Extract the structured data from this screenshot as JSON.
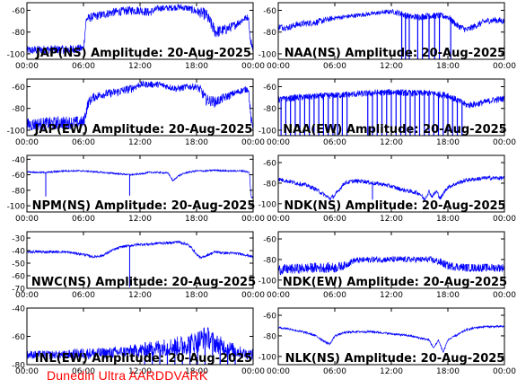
{
  "figure": {
    "footer_text": "Dunedin Ultra AARDDVARK",
    "footer_color": "#ff0000",
    "trace_color": "#0000ff"
  },
  "chart_data": [
    {
      "type": "line",
      "title": "JAP(NS) Amplitude: 20-Aug-2025",
      "x_ticks": [
        "00:00",
        "06:00",
        "12:00",
        "18:00",
        "00:00"
      ],
      "xlim": [
        0,
        24
      ],
      "ylim": [
        -105,
        -53
      ],
      "y_ticks": [
        -100,
        -80,
        -60
      ],
      "series": [
        {
          "x": [
            0,
            2,
            4,
            6,
            6.3,
            7,
            8,
            9,
            10,
            11,
            12,
            13,
            14,
            15,
            16,
            17,
            18,
            19,
            19.5,
            20,
            21,
            22,
            23,
            23.5,
            23.7,
            24
          ],
          "y": [
            -97,
            -96,
            -96,
            -95,
            -68,
            -66,
            -64,
            -62,
            -61,
            -60,
            -60,
            -62,
            -58,
            -58,
            -57,
            -58,
            -61,
            -64,
            -72,
            -80,
            -78,
            -74,
            -68,
            -66,
            -88,
            -94
          ],
          "noise": [
            4,
            4,
            4,
            4,
            4,
            4,
            4,
            4,
            4,
            4,
            4,
            4,
            3,
            3,
            3,
            3,
            4,
            6,
            6,
            6,
            5,
            4,
            3,
            3,
            4,
            4
          ]
        }
      ]
    },
    {
      "type": "line",
      "title": "NAA(NS) Amplitude: 20-Aug-2025",
      "x_ticks": [
        "00:00",
        "06:00",
        "12:00",
        "18:00",
        "00:00"
      ],
      "xlim": [
        0,
        24
      ],
      "ylim": [
        -105,
        -53
      ],
      "y_ticks": [
        -100,
        -80,
        -60
      ],
      "series": [
        {
          "x": [
            0,
            1,
            2,
            3,
            4,
            5,
            6,
            7,
            8,
            9,
            10,
            11,
            12,
            13,
            14,
            15,
            16,
            17,
            18,
            19,
            20,
            21,
            22,
            23,
            24
          ],
          "y": [
            -75,
            -76,
            -73,
            -72,
            -71,
            -69,
            -67,
            -66,
            -65,
            -64,
            -63,
            -62,
            -61,
            -63,
            -66,
            -66,
            -65,
            -65,
            -66,
            -74,
            -78,
            -74,
            -70,
            -69,
            -70
          ],
          "noise": [
            3,
            3,
            3,
            3,
            3,
            3,
            2,
            2,
            2,
            2,
            2,
            2,
            2,
            3,
            3,
            3,
            3,
            3,
            3,
            3,
            3,
            3,
            3,
            3,
            3
          ]
        }
      ],
      "dropouts": [
        13.1,
        13.5,
        13.9,
        14.8,
        15.3,
        16.0,
        16.6,
        17.1,
        18.3
      ]
    },
    {
      "type": "line",
      "title": "JAP(EW) Amplitude: 20-Aug-2025",
      "x_ticks": [
        "00:00",
        "06:00",
        "12:00",
        "18:00",
        "00:00"
      ],
      "xlim": [
        0,
        24
      ],
      "ylim": [
        -105,
        -53
      ],
      "y_ticks": [
        -100,
        -80,
        -60
      ],
      "series": [
        {
          "x": [
            0,
            2,
            4,
            6,
            6.5,
            7,
            8,
            9,
            10,
            11,
            12,
            13,
            14,
            15,
            16,
            17,
            18,
            18.5,
            19,
            20,
            21,
            22,
            23,
            23.5,
            23.8,
            24
          ],
          "y": [
            -95,
            -94,
            -93,
            -93,
            -75,
            -70,
            -67,
            -66,
            -64,
            -62,
            -58,
            -58,
            -58,
            -60,
            -62,
            -60,
            -60,
            -64,
            -72,
            -74,
            -70,
            -66,
            -63,
            -62,
            -92,
            -98
          ],
          "noise": [
            6,
            6,
            6,
            6,
            5,
            4,
            4,
            4,
            4,
            4,
            3,
            3,
            3,
            3,
            3,
            3,
            3,
            5,
            5,
            5,
            4,
            3,
            3,
            3,
            5,
            5
          ]
        }
      ]
    },
    {
      "type": "line",
      "title": "NAA(EW) Amplitude: 20-Aug-2025",
      "x_ticks": [
        "00:00",
        "06:00",
        "12:00",
        "18:00",
        "00:00"
      ],
      "xlim": [
        0,
        24
      ],
      "ylim": [
        -105,
        -53
      ],
      "y_ticks": [
        -100,
        -80,
        -60
      ],
      "series": [
        {
          "x": [
            0,
            2,
            4,
            6,
            8,
            10,
            12,
            14,
            16,
            18,
            20,
            21,
            22,
            23,
            24
          ],
          "y": [
            -72,
            -70,
            -69,
            -68,
            -67,
            -66,
            -65,
            -66,
            -66,
            -68,
            -77,
            -76,
            -74,
            -72,
            -71
          ],
          "noise": [
            3,
            3,
            3,
            3,
            3,
            3,
            3,
            3,
            3,
            3,
            3,
            3,
            3,
            3,
            3
          ]
        }
      ],
      "dropouts": [
        0.3,
        0.8,
        1.3,
        1.8,
        2.3,
        2.8,
        3.3,
        3.8,
        4.3,
        4.8,
        5.3,
        5.8,
        6.3,
        6.8,
        7.3,
        9.5,
        10.0,
        10.5,
        11.0,
        11.5,
        12.0,
        12.5,
        13.0,
        13.5,
        14.0,
        14.5,
        15.0,
        15.5,
        16.0,
        16.5,
        17.0,
        17.5,
        18.0,
        18.5,
        19.0,
        19.5
      ]
    },
    {
      "type": "line",
      "title": "NPM(NS) Amplitude: 20-Aug-2025",
      "x_ticks": [
        "00:00",
        "06:00",
        "12:00",
        "18:00",
        "00:00"
      ],
      "xlim": [
        0,
        24
      ],
      "ylim": [
        -108,
        -35
      ],
      "y_ticks": [
        -100,
        -80,
        -60,
        -40
      ],
      "series": [
        {
          "x": [
            0,
            1,
            2,
            3,
            4,
            5,
            6,
            7,
            8,
            9,
            10,
            11,
            12,
            13,
            14,
            15,
            15.5,
            16,
            16.5,
            17,
            18,
            19,
            20,
            21,
            22,
            23,
            23.6,
            23.8,
            24
          ],
          "y": [
            -56,
            -57,
            -57,
            -56,
            -55,
            -55,
            -55,
            -56,
            -57,
            -58,
            -59,
            -60,
            -59,
            -57,
            -57,
            -58,
            -68,
            -62,
            -59,
            -57,
            -55,
            -55,
            -54,
            -55,
            -55,
            -55,
            -57,
            -90,
            -88
          ],
          "noise": [
            1,
            1,
            1,
            1,
            1,
            1,
            1,
            1,
            1,
            1,
            1,
            1,
            1,
            1,
            1,
            1,
            1,
            1,
            1,
            1,
            1,
            1,
            1,
            1,
            1,
            1,
            1,
            2,
            2
          ]
        }
      ],
      "spikes": [
        {
          "x": 2.0,
          "y": -88
        },
        {
          "x": 10.9,
          "y": -87
        }
      ]
    },
    {
      "type": "line",
      "title": "NDK(NS) Amplitude: 20-Aug-2025",
      "x_ticks": [
        "00:00",
        "06:00",
        "12:00",
        "18:00",
        "00:00"
      ],
      "xlim": [
        0,
        24
      ],
      "ylim": [
        -108,
        -53
      ],
      "y_ticks": [
        -100,
        -80,
        -60
      ],
      "series": [
        {
          "x": [
            0,
            1,
            2,
            3,
            4,
            5,
            5.5,
            6,
            6.5,
            7,
            8,
            9,
            10,
            11,
            12,
            13,
            14,
            15,
            15.5,
            16,
            16.3,
            16.8,
            17.2,
            17.8,
            18,
            19,
            20,
            21,
            22,
            23,
            24
          ],
          "y": [
            -76,
            -78,
            -80,
            -82,
            -86,
            -92,
            -95,
            -92,
            -86,
            -80,
            -78,
            -78,
            -80,
            -81,
            -83,
            -86,
            -88,
            -90,
            -96,
            -88,
            -93,
            -88,
            -95,
            -86,
            -84,
            -80,
            -77,
            -76,
            -75,
            -75,
            -75
          ],
          "noise": [
            2,
            2,
            2,
            2,
            2,
            2,
            2,
            2,
            2,
            2,
            2,
            2,
            2,
            2,
            2,
            2,
            2,
            2,
            2,
            2,
            2,
            2,
            2,
            2,
            2,
            2,
            2,
            2,
            2,
            2,
            2
          ]
        }
      ],
      "spikes": [
        {
          "x": 10.0,
          "y": -96
        }
      ]
    },
    {
      "type": "line",
      "title": "NWC(NS) Amplitude: 20-Aug-2025",
      "x_ticks": [
        "00:00",
        "06:00",
        "12:00",
        "18:00",
        "00:00"
      ],
      "xlim": [
        0,
        24
      ],
      "ylim": [
        -70,
        -25
      ],
      "y_ticks": [
        -70,
        -60,
        -50,
        -40,
        -30
      ],
      "series": [
        {
          "x": [
            0,
            2,
            4,
            5,
            6,
            7,
            8,
            9,
            10,
            11,
            12,
            13,
            14,
            15,
            16,
            17,
            17.5,
            18,
            18.5,
            19,
            20,
            21,
            22,
            23,
            24
          ],
          "y": [
            -41,
            -41,
            -41,
            -42,
            -43,
            -45,
            -44,
            -40,
            -37,
            -36,
            -35,
            -35,
            -34,
            -34,
            -33,
            -35,
            -38,
            -43,
            -46,
            -44,
            -41,
            -42,
            -42,
            -43,
            -45
          ],
          "noise": [
            1,
            1,
            1,
            1,
            1,
            1,
            1,
            1,
            1,
            1,
            1,
            1,
            1,
            1,
            1,
            1,
            1,
            1,
            1,
            1,
            1,
            1,
            1,
            1,
            1
          ]
        }
      ],
      "spikes": [
        {
          "x": 10.9,
          "y": -69
        }
      ]
    },
    {
      "type": "line",
      "title": "NDK(EW) Amplitude: 20-Aug-2025",
      "x_ticks": [
        "00:00",
        "06:00",
        "12:00",
        "18:00",
        "00:00"
      ],
      "xlim": [
        0,
        24
      ],
      "ylim": [
        -108,
        -53
      ],
      "y_ticks": [
        -100,
        -80,
        -60
      ],
      "series": [
        {
          "x": [
            0,
            2,
            4,
            6,
            7,
            8,
            10,
            12,
            14,
            16,
            17,
            18,
            20,
            22,
            24
          ],
          "y": [
            -90,
            -89,
            -88,
            -88,
            -86,
            -81,
            -80,
            -80,
            -80,
            -80,
            -82,
            -86,
            -88,
            -88,
            -88
          ],
          "noise": [
            5,
            5,
            5,
            5,
            4,
            3,
            3,
            3,
            3,
            3,
            4,
            4,
            4,
            4,
            4
          ]
        }
      ]
    },
    {
      "type": "line",
      "title": "INL(EW) Amplitude: 20-Aug-2025",
      "x_ticks": [
        "00:00",
        "06:00",
        "12:00",
        "18:00",
        "00:00"
      ],
      "xlim": [
        0,
        24
      ],
      "ylim": [
        -80,
        -40
      ],
      "y_ticks": [
        -80,
        -60,
        -40
      ],
      "series": [
        {
          "x": [
            0,
            2,
            4,
            6,
            8,
            10,
            12,
            14,
            16,
            18,
            19,
            20,
            22,
            23,
            24
          ],
          "y": [
            -73,
            -73,
            -73,
            -72,
            -72,
            -71,
            -70,
            -68,
            -67,
            -64,
            -60,
            -65,
            -70,
            -72,
            -73
          ],
          "noise": [
            3,
            3,
            3,
            4,
            4,
            4,
            5,
            6,
            7,
            8,
            8,
            7,
            5,
            4,
            4
          ]
        }
      ],
      "dropouts": [
        12.5,
        13.3,
        14.1,
        14.9,
        15.7,
        16.5,
        17.3,
        18.1,
        18.9,
        19.7,
        20.5,
        21.3,
        22.1
      ]
    },
    {
      "type": "line",
      "title": "NLK(NS) Amplitude: 20-Aug-2025",
      "x_ticks": [
        "00:00",
        "06:00",
        "12:00",
        "18:00",
        "00:00"
      ],
      "xlim": [
        0,
        24
      ],
      "ylim": [
        -108,
        -53
      ],
      "y_ticks": [
        -100,
        -80,
        -60
      ],
      "series": [
        {
          "x": [
            0,
            1,
            2,
            3,
            4,
            5,
            5.5,
            6,
            7,
            8,
            9,
            10,
            11,
            12,
            13,
            14,
            15,
            16,
            16.5,
            17,
            17.5,
            18,
            19,
            20,
            21,
            22,
            23,
            24
          ],
          "y": [
            -72,
            -73,
            -75,
            -77,
            -80,
            -86,
            -88,
            -80,
            -77,
            -76,
            -76,
            -76,
            -77,
            -78,
            -79,
            -80,
            -82,
            -84,
            -92,
            -84,
            -96,
            -84,
            -79,
            -74,
            -72,
            -71,
            -71,
            -71
          ],
          "noise": [
            1,
            1,
            1,
            1,
            1,
            1,
            1,
            1,
            1,
            1,
            1,
            1,
            1,
            1,
            1,
            1,
            1,
            1,
            1,
            1,
            1,
            1,
            1,
            1,
            1,
            1,
            1,
            1
          ]
        }
      ]
    }
  ]
}
